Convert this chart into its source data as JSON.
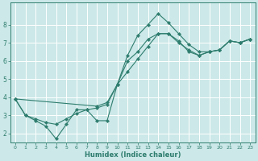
{
  "xlabel": "Humidex (Indice chaleur)",
  "bg_color": "#cce8e8",
  "line_color": "#2e7d6e",
  "grid_color": "#b8d8d8",
  "xlim": [
    -0.5,
    23.5
  ],
  "ylim": [
    1.5,
    9.2
  ],
  "yticks": [
    2,
    3,
    4,
    5,
    6,
    7,
    8
  ],
  "xticks": [
    0,
    1,
    2,
    3,
    4,
    5,
    6,
    7,
    8,
    9,
    10,
    11,
    12,
    13,
    14,
    15,
    16,
    17,
    18,
    19,
    20,
    21,
    22,
    23
  ],
  "line1_x": [
    0,
    1,
    2,
    3,
    4,
    5,
    6,
    7,
    8,
    9,
    10,
    11,
    12,
    13,
    14,
    15,
    16,
    17,
    18,
    19,
    20,
    21,
    22,
    23
  ],
  "line1_y": [
    3.9,
    3.0,
    2.7,
    2.4,
    1.7,
    2.5,
    3.3,
    3.3,
    2.7,
    2.7,
    4.7,
    6.3,
    7.4,
    8.0,
    8.6,
    8.1,
    7.5,
    6.9,
    6.5,
    6.5,
    6.6,
    7.1,
    7.0,
    7.2
  ],
  "line2_x": [
    0,
    1,
    2,
    3,
    4,
    5,
    6,
    7,
    8,
    9,
    10,
    11,
    12,
    13,
    14,
    15,
    16,
    17,
    18,
    19,
    20,
    21,
    22,
    23
  ],
  "line2_y": [
    3.9,
    3.0,
    2.8,
    2.6,
    2.5,
    2.8,
    3.1,
    3.3,
    3.4,
    3.6,
    4.7,
    5.4,
    6.1,
    6.8,
    7.5,
    7.5,
    7.1,
    6.5,
    6.3,
    6.5,
    6.6,
    7.1,
    7.0,
    7.2
  ],
  "line3_x": [
    0,
    8,
    9,
    10,
    11,
    12,
    13,
    14,
    15,
    16,
    17,
    18,
    19,
    20,
    21,
    22,
    23
  ],
  "line3_y": [
    3.9,
    3.5,
    3.7,
    4.7,
    6.0,
    6.5,
    7.2,
    7.5,
    7.5,
    7.0,
    6.6,
    6.3,
    6.5,
    6.6,
    7.1,
    7.0,
    7.2
  ]
}
